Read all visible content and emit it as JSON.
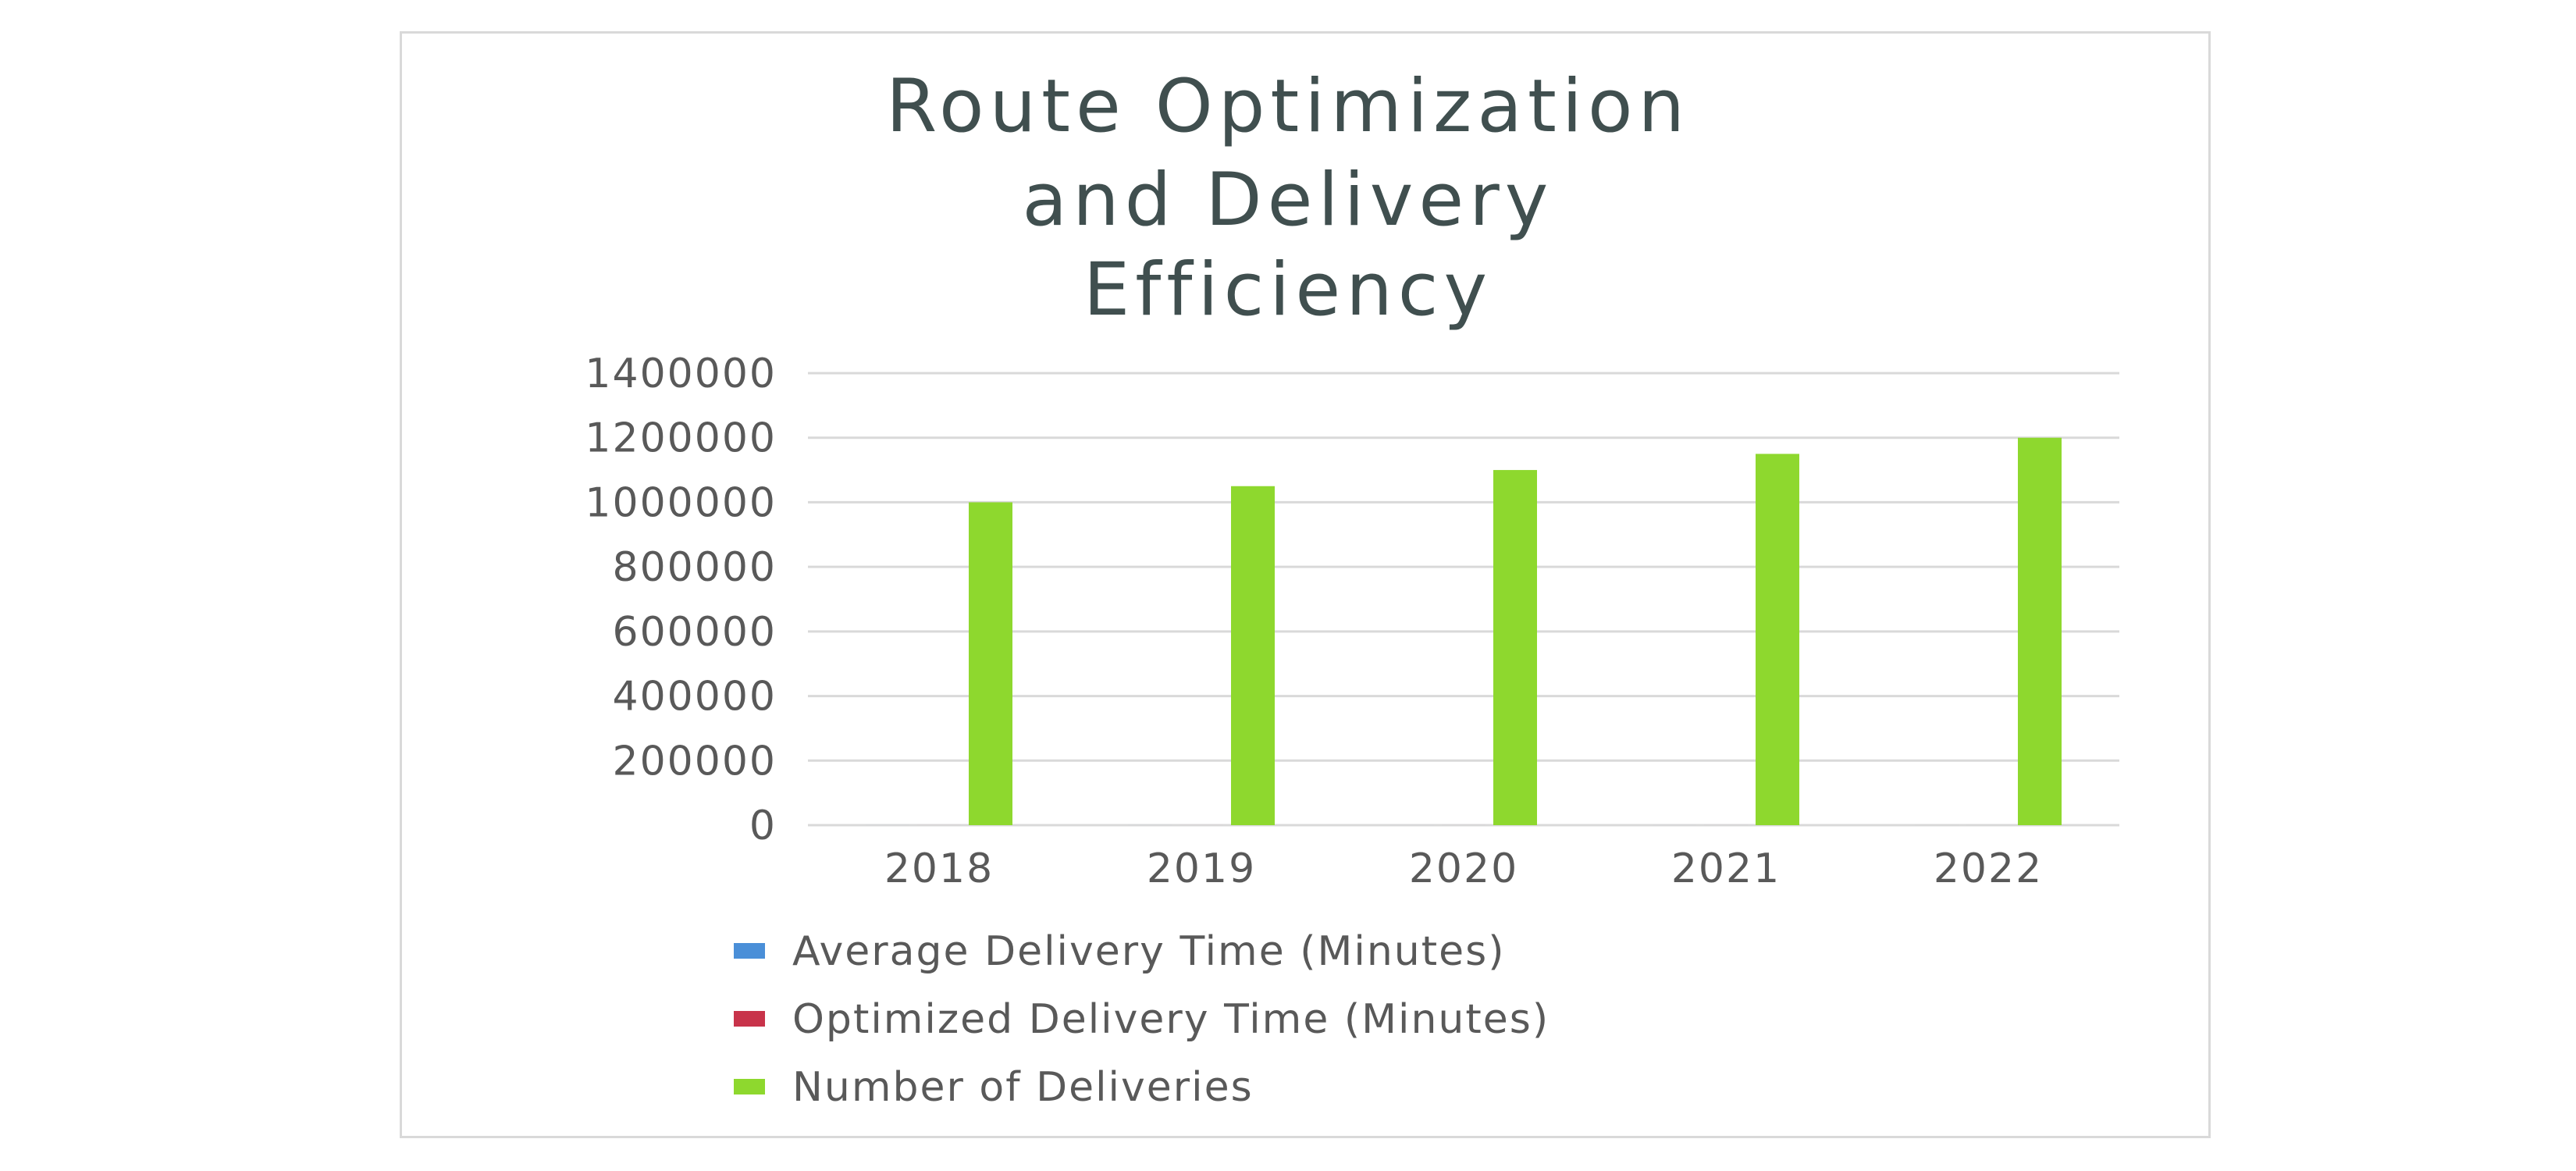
{
  "chart_data": {
    "type": "bar",
    "title_lines": [
      "Route Optimization",
      "and Delivery",
      "Efficiency"
    ],
    "xlabel": "",
    "ylabel": "",
    "categories": [
      "2018",
      "2019",
      "2020",
      "2021",
      "2022"
    ],
    "series": [
      {
        "name": "Average Delivery Time (Minutes)",
        "color": "#4a8fd8",
        "values": [
          45,
          42,
          40,
          38,
          35
        ]
      },
      {
        "name": "Optimized Delivery Time (Minutes)",
        "color": "#c8334a",
        "values": [
          40,
          37,
          35,
          33,
          30
        ]
      },
      {
        "name": "Number of Deliveries",
        "color": "#8ed82e",
        "values": [
          1000000,
          1050000,
          1100000,
          1150000,
          1200000
        ]
      }
    ],
    "ylim": [
      0,
      1400000
    ],
    "yticks": [
      "0",
      "200000",
      "400000",
      "600000",
      "800000",
      "1000000",
      "1200000",
      "1400000"
    ],
    "grid": true,
    "legend_position": "bottom"
  }
}
